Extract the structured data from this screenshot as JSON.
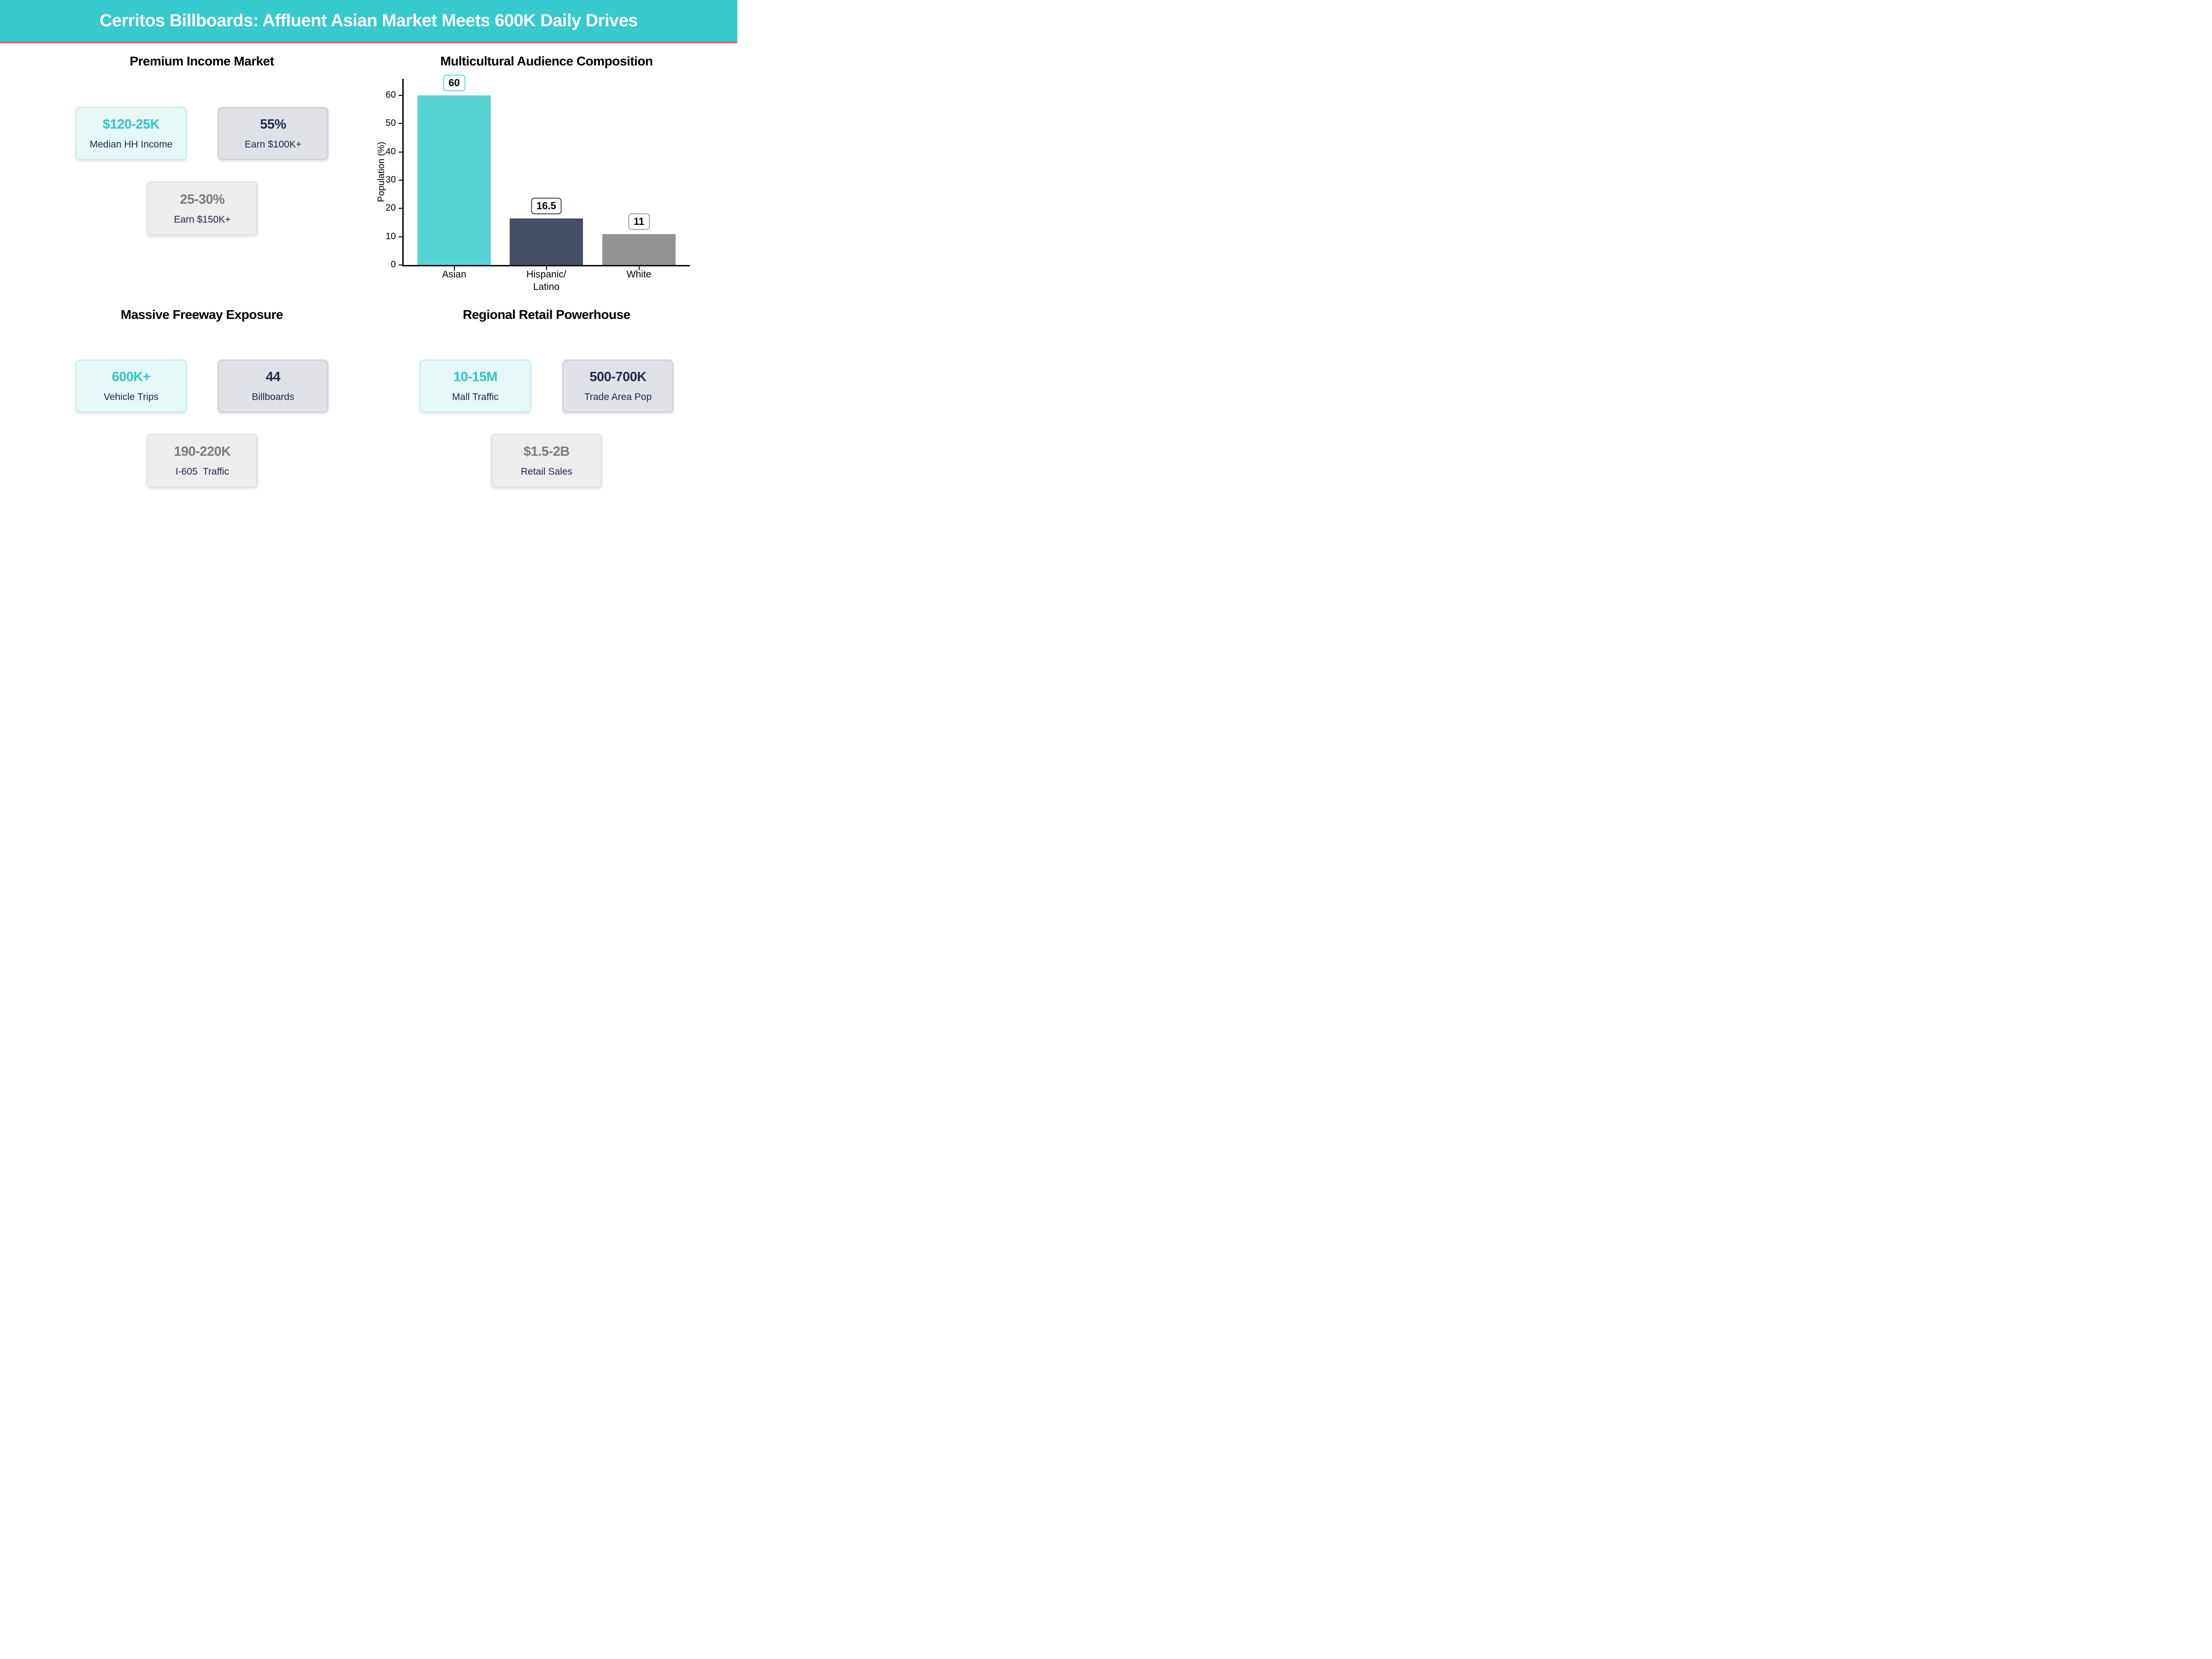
{
  "header": {
    "title": "Cerritos Billboards: Affluent Asian Market Meets 600K Daily Drives"
  },
  "sections": {
    "income": {
      "title": "Premium Income Market",
      "cards": [
        {
          "value": "$120-25K",
          "label": "Median HH Income"
        },
        {
          "value": "55%",
          "label": "Earn $100K+"
        },
        {
          "value": "25-30%",
          "label": "Earn $150K+"
        }
      ]
    },
    "audience": {
      "title": "Multicultural Audience Composition"
    },
    "freeway": {
      "title": "Massive Freeway Exposure",
      "cards": [
        {
          "value": "600K+",
          "label": "Vehicle Trips"
        },
        {
          "value": "44",
          "label": "Billboards"
        },
        {
          "value": "190-220K",
          "label": "I-605  Traffic"
        }
      ]
    },
    "retail": {
      "title": "Regional Retail Powerhouse",
      "cards": [
        {
          "value": "10-15M",
          "label": "Mall Traffic"
        },
        {
          "value": "500-700K",
          "label": "Trade Area Pop"
        },
        {
          "value": "$1.5-2B",
          "label": "Retail Sales"
        }
      ]
    }
  },
  "chart_data": {
    "type": "bar",
    "title": "Multicultural Audience Composition",
    "categories": [
      "Asian",
      "Hispanic/\nLatino",
      "White"
    ],
    "values": [
      60,
      16.5,
      11
    ],
    "value_labels": [
      "60",
      "16.5",
      "11"
    ],
    "bar_colors": [
      "#57d3d6",
      "#474e68",
      "#929292"
    ],
    "label_box_borders": [
      "#62d6d9",
      "#3f4763",
      "#9e9e9e"
    ],
    "xlabel": "",
    "ylabel": "Population (%)",
    "yticks": [
      0,
      10,
      20,
      30,
      40,
      50,
      60
    ],
    "ylim": [
      0,
      66
    ],
    "grid": false,
    "legend": false
  },
  "colors": {
    "header_bg": "#36c9ce",
    "header_text": "#ffffff",
    "divider_pink": "#ee5d73",
    "accent_teal": "#30c5cd",
    "navy_text": "#222b4d",
    "muted_gray_text": "#7b7b7b",
    "mint_card_bg": "#e6f8f7",
    "mint_card_border": "#cbeeec",
    "gray_card_bg": "#e0e1e6",
    "gray_card_border": "#d0d2db",
    "light_card_bg": "#ededed",
    "light_card_border": "#e2e2e2"
  }
}
